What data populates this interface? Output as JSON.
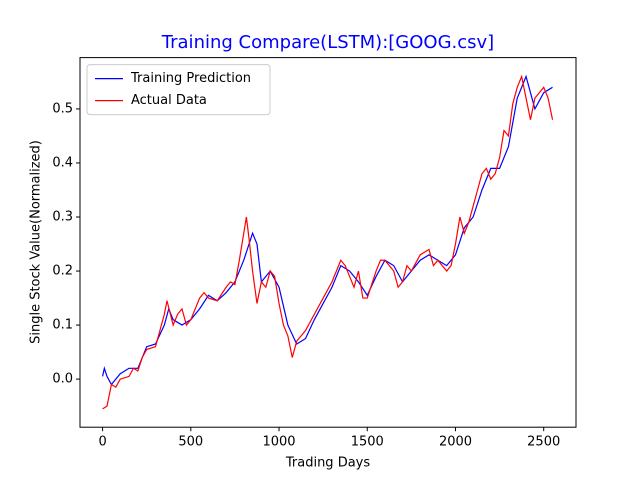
{
  "chart_data": {
    "type": "line",
    "title": "Training Compare(LSTM):[GOOG.csv]",
    "title_color": "#0000ff",
    "x_label": "Trading Days",
    "y_label": "Single Stock Value(Normalized)",
    "legend": "upper left",
    "xlim": [
      -128,
      2683
    ],
    "ylim": [
      -0.089,
      0.595
    ],
    "xticks": [
      0,
      500,
      1000,
      1500,
      2000,
      2500
    ],
    "yticks": [
      {
        "value": 0,
        "label": "0.0"
      },
      0.1,
      0.2,
      0.3,
      0.4,
      0.5
    ],
    "series": [
      {
        "name": "Training Prediction",
        "color": "#0000ff",
        "x": [
          0,
          10,
          25,
          50,
          100,
          150,
          200,
          250,
          300,
          350,
          375,
          400,
          450,
          500,
          550,
          600,
          650,
          700,
          750,
          800,
          850,
          875,
          900,
          950,
          1000,
          1050,
          1100,
          1150,
          1200,
          1250,
          1300,
          1350,
          1400,
          1450,
          1500,
          1550,
          1600,
          1650,
          1700,
          1750,
          1800,
          1850,
          1900,
          1950,
          2000,
          2050,
          2100,
          2150,
          2200,
          2250,
          2300,
          2350,
          2400,
          2425,
          2450,
          2500,
          2550
        ],
        "values": [
          0.005,
          0.02,
          0.005,
          -0.01,
          0.01,
          0.02,
          0.02,
          0.06,
          0.065,
          0.1,
          0.13,
          0.11,
          0.1,
          0.11,
          0.13,
          0.155,
          0.145,
          0.16,
          0.18,
          0.22,
          0.27,
          0.25,
          0.18,
          0.2,
          0.17,
          0.1,
          0.065,
          0.075,
          0.11,
          0.14,
          0.17,
          0.21,
          0.2,
          0.18,
          0.155,
          0.19,
          0.22,
          0.21,
          0.18,
          0.2,
          0.22,
          0.23,
          0.22,
          0.21,
          0.23,
          0.28,
          0.3,
          0.35,
          0.39,
          0.39,
          0.43,
          0.52,
          0.56,
          0.53,
          0.5,
          0.53,
          0.54
        ]
      },
      {
        "name": "Actual Data",
        "color": "#ff0000",
        "x": [
          0,
          25,
          50,
          75,
          100,
          150,
          175,
          200,
          225,
          250,
          300,
          325,
          350,
          365,
          400,
          425,
          450,
          475,
          500,
          550,
          575,
          600,
          650,
          700,
          725,
          750,
          775,
          800,
          815,
          830,
          850,
          875,
          900,
          925,
          950,
          975,
          1000,
          1025,
          1050,
          1075,
          1100,
          1150,
          1200,
          1250,
          1300,
          1350,
          1375,
          1400,
          1425,
          1450,
          1475,
          1500,
          1550,
          1575,
          1600,
          1650,
          1675,
          1700,
          1725,
          1750,
          1800,
          1850,
          1875,
          1900,
          1950,
          1975,
          2000,
          2025,
          2050,
          2075,
          2100,
          2125,
          2150,
          2175,
          2200,
          2225,
          2250,
          2275,
          2300,
          2325,
          2350,
          2375,
          2400,
          2425,
          2450,
          2475,
          2500,
          2525,
          2550
        ],
        "values": [
          -0.055,
          -0.05,
          -0.01,
          -0.015,
          0.0,
          0.005,
          0.02,
          0.015,
          0.04,
          0.055,
          0.06,
          0.09,
          0.12,
          0.145,
          0.1,
          0.12,
          0.13,
          0.1,
          0.11,
          0.15,
          0.16,
          0.15,
          0.145,
          0.17,
          0.18,
          0.175,
          0.22,
          0.27,
          0.3,
          0.26,
          0.2,
          0.14,
          0.18,
          0.17,
          0.2,
          0.19,
          0.14,
          0.1,
          0.08,
          0.04,
          0.07,
          0.09,
          0.12,
          0.15,
          0.18,
          0.22,
          0.21,
          0.19,
          0.17,
          0.2,
          0.15,
          0.15,
          0.2,
          0.22,
          0.22,
          0.2,
          0.17,
          0.18,
          0.21,
          0.2,
          0.23,
          0.24,
          0.21,
          0.22,
          0.2,
          0.21,
          0.25,
          0.3,
          0.27,
          0.29,
          0.32,
          0.35,
          0.38,
          0.39,
          0.37,
          0.38,
          0.41,
          0.46,
          0.45,
          0.51,
          0.54,
          0.56,
          0.52,
          0.48,
          0.52,
          0.53,
          0.54,
          0.52,
          0.48
        ]
      }
    ]
  }
}
